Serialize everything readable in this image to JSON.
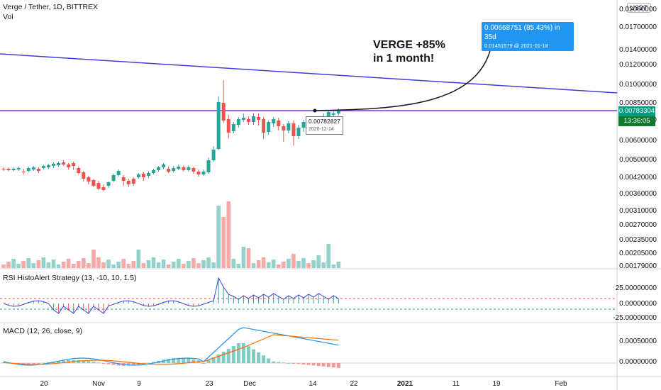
{
  "header": {
    "symbol": "Verge / Tether, 1D, BITTREX",
    "volume_label": "Vol"
  },
  "currency_button": "USDT",
  "price_axis": {
    "labels": [
      "0.02000000",
      "0.01700000",
      "0.01400000",
      "0.01200000",
      "0.01000000",
      "0.00850000",
      "0.00700000",
      "0.00600000",
      "0.00500000",
      "0.00420000",
      "0.00360000",
      "0.00310000",
      "0.00270000",
      "0.00235000",
      "0.00205000",
      "0.00179000"
    ]
  },
  "price_tags": {
    "last_price": "0.00783304",
    "countdown": "13:36:05",
    "last_color": "#089981"
  },
  "annotation": {
    "line1": "VERGE +85%",
    "line2": "in 1 month!"
  },
  "projection": {
    "line1": "0.00668751 (85.43%) in 35d",
    "line2": "0.01451579 @ 2021-01-18"
  },
  "point_label": {
    "price": "0.00782827",
    "date": "2020-12-14"
  },
  "rsi": {
    "title": "RSI HistoAlert Strategy (13, -10, 10, 1.5)",
    "labels": [
      "25.00000000",
      "0.00000000",
      "-25.00000000"
    ]
  },
  "macd": {
    "title": "MACD (12, 26, close, 9)",
    "labels": [
      "0.00050000",
      "0.00000000"
    ]
  },
  "time_axis": {
    "labels": [
      {
        "text": "20",
        "bold": false
      },
      {
        "text": "Nov",
        "bold": false
      },
      {
        "text": "9",
        "bold": false
      },
      {
        "text": "23",
        "bold": false
      },
      {
        "text": "Dec",
        "bold": false
      },
      {
        "text": "14",
        "bold": false
      },
      {
        "text": "22",
        "bold": false
      },
      {
        "text": "2021",
        "bold": true
      },
      {
        "text": "11",
        "bold": false
      },
      {
        "text": "19",
        "bold": false
      },
      {
        "text": "Feb",
        "bold": false
      }
    ]
  },
  "colors": {
    "up": "#26a69a",
    "down": "#ef5350",
    "trendline": "#3f3fd9",
    "hline": "#7b2ff7",
    "macd": "#2196f3",
    "signal": "#ff6d00",
    "rsi_line": "#3f3fd9"
  }
}
